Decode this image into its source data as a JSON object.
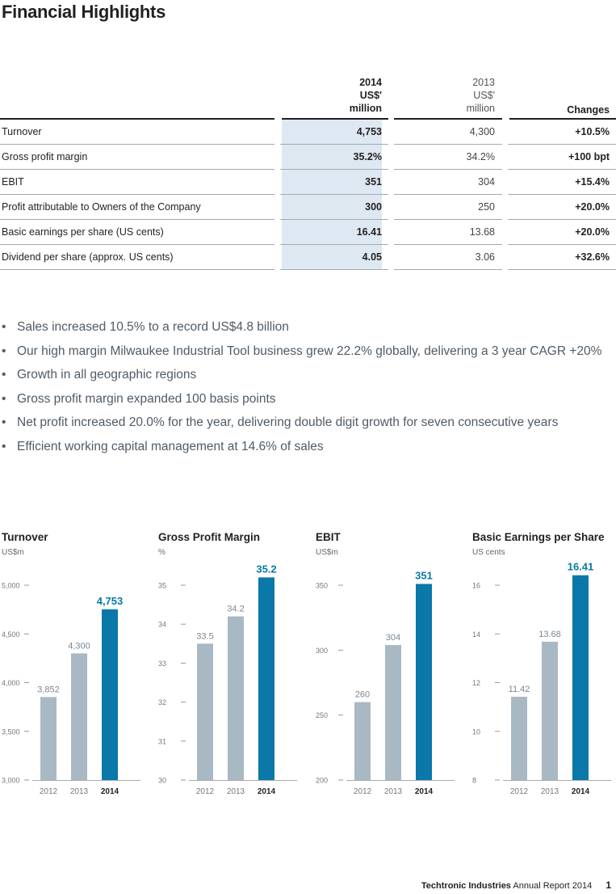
{
  "page_title": "Financial Highlights",
  "table": {
    "headers": {
      "y2014": [
        "2014",
        "US$'",
        "million"
      ],
      "y2013": [
        "2013",
        "US$'",
        "million"
      ],
      "changes": "Changes"
    },
    "rows": [
      {
        "label": "Turnover",
        "v2014": "4,753",
        "v2013": "4,300",
        "change": "+10.5%"
      },
      {
        "label": "Gross profit margin",
        "v2014": "35.2%",
        "v2013": "34.2%",
        "change": "+100 bpt"
      },
      {
        "label": "EBIT",
        "v2014": "351",
        "v2013": "304",
        "change": "+15.4%"
      },
      {
        "label": "Profit attributable to Owners of the Company",
        "v2014": "300",
        "v2013": "250",
        "change": "+20.0%"
      },
      {
        "label": "Basic earnings per share (US cents)",
        "v2014": "16.41",
        "v2013": "13.68",
        "change": "+20.0%"
      },
      {
        "label": "Dividend per share (approx. US cents)",
        "v2014": "4.05",
        "v2013": "3.06",
        "change": "+32.6%"
      }
    ]
  },
  "highlights": [
    "Sales increased 10.5% to a record US$4.8 billion",
    "Our high margin Milwaukee Industrial Tool business grew 22.2% globally, delivering a 3 year CAGR +20%",
    "Growth in all geographic regions",
    "Gross profit margin expanded 100 basis points",
    "Net profit increased 20.0% for the year, delivering double digit growth for seven consecutive years",
    "Efficient working capital management at 14.6% of sales"
  ],
  "colors": {
    "bar_past": "#a9b9c3",
    "bar_current": "#0a78a8",
    "highlight_col": "#dde8f2",
    "label_past": "#7a8790"
  },
  "chart_data": [
    {
      "type": "bar",
      "title": "Turnover",
      "unit": "US$m",
      "categories": [
        "2012",
        "2013",
        "2014"
      ],
      "values": [
        3852,
        4300,
        4753
      ],
      "value_labels": [
        "3,852",
        "4,300",
        "4,753"
      ],
      "ylim": [
        3000,
        5000
      ],
      "yticks": [
        3000,
        3500,
        4000,
        4500,
        5000
      ],
      "ytick_labels": [
        "3,000",
        "3,500",
        "4,000",
        "4,500",
        "5,000"
      ]
    },
    {
      "type": "bar",
      "title": "Gross Profit Margin",
      "unit": "%",
      "categories": [
        "2012",
        "2013",
        "2014"
      ],
      "values": [
        33.5,
        34.2,
        35.2
      ],
      "value_labels": [
        "33.5",
        "34.2",
        "35.2"
      ],
      "ylim": [
        30,
        35
      ],
      "yticks": [
        30,
        31,
        32,
        33,
        34,
        35
      ],
      "ytick_labels": [
        "30",
        "31",
        "32",
        "33",
        "34",
        "35"
      ]
    },
    {
      "type": "bar",
      "title": "EBIT",
      "unit": "US$m",
      "categories": [
        "2012",
        "2013",
        "2014"
      ],
      "values": [
        260,
        304,
        351
      ],
      "value_labels": [
        "260",
        "304",
        "351"
      ],
      "ylim": [
        200,
        350
      ],
      "yticks": [
        200,
        250,
        300,
        350
      ],
      "ytick_labels": [
        "200",
        "250",
        "300",
        "350"
      ]
    },
    {
      "type": "bar",
      "title": "Basic Earnings per Share",
      "unit": "US cents",
      "categories": [
        "2012",
        "2013",
        "2014"
      ],
      "values": [
        11.42,
        13.68,
        16.41
      ],
      "value_labels": [
        "11.42",
        "13.68",
        "16.41"
      ],
      "ylim": [
        8,
        16
      ],
      "yticks": [
        8,
        10,
        12,
        14,
        16
      ],
      "ytick_labels": [
        "8",
        "10",
        "12",
        "14",
        "16"
      ]
    }
  ],
  "footer": {
    "brand": "Techtronic Industries",
    "report": "Annual Report 2014",
    "page": "1"
  }
}
